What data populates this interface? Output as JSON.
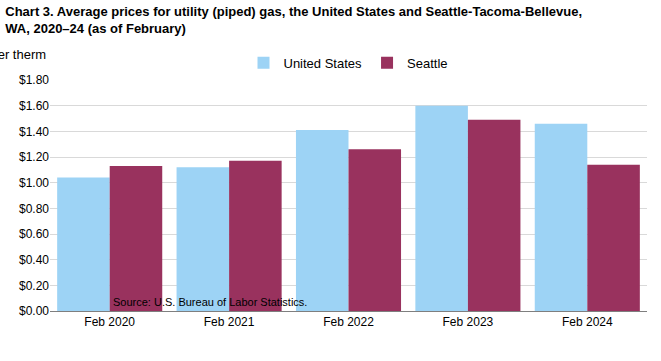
{
  "chart_data": {
    "type": "bar",
    "title": [
      "Chart 3. Average prices for utility (piped) gas, the United States and Seattle-Tacoma-Bellevue,",
      "WA, 2020–24 (as of February)"
    ],
    "ylabel": "Per therm",
    "note": "Source: U.S. Bureau of Labor Statistics.",
    "categories": [
      "Feb 2020",
      "Feb 2021",
      "Feb 2022",
      "Feb 2023",
      "Feb 2024"
    ],
    "series": [
      {
        "name": "United States",
        "color": "#9dd3f5",
        "values": [
          1.04,
          1.12,
          1.41,
          1.6,
          1.46
        ]
      },
      {
        "name": "Seattle",
        "color": "#99325e",
        "values": [
          1.13,
          1.17,
          1.26,
          1.49,
          1.14
        ]
      }
    ],
    "ylim": [
      0,
      1.8
    ],
    "yticks": [
      {
        "value": 0,
        "label": "$0.00"
      },
      {
        "value": 0.2,
        "label": "$0.20"
      },
      {
        "value": 0.4,
        "label": "$0.40"
      },
      {
        "value": 0.6,
        "label": "$0.60"
      },
      {
        "value": 0.8,
        "label": "$0.80"
      },
      {
        "value": 1.0,
        "label": "$1.00"
      },
      {
        "value": 1.2,
        "label": "$1.20"
      },
      {
        "value": 1.4,
        "label": "$1.40"
      },
      {
        "value": 1.6,
        "label": "$1.60"
      },
      {
        "value": 1.8,
        "label": "$1.80"
      }
    ],
    "grid": true,
    "legend": "top"
  }
}
